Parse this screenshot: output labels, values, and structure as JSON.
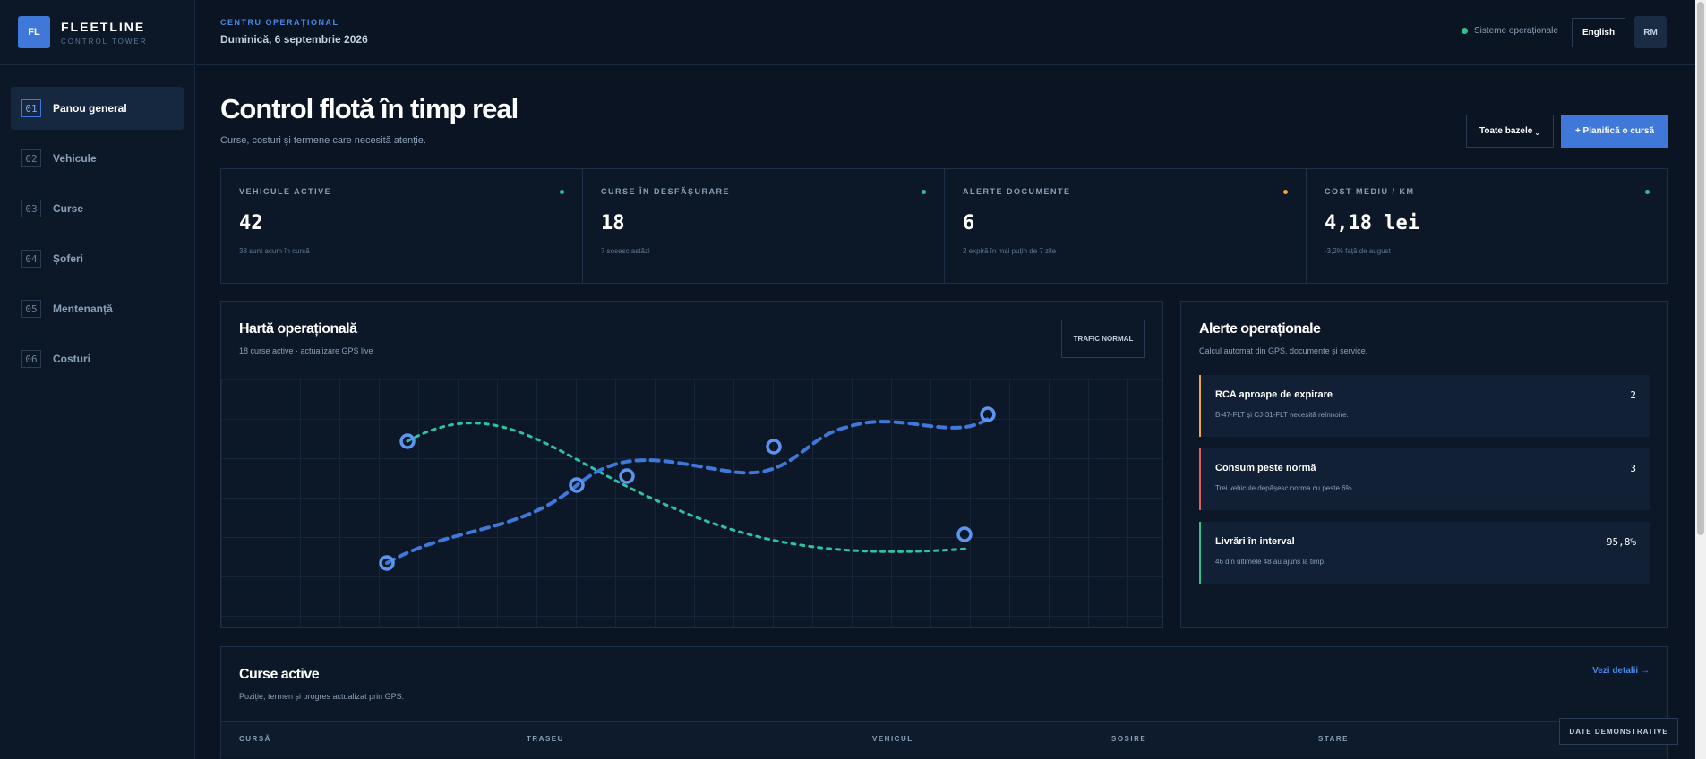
{
  "brand": {
    "logo": "FL",
    "name": "FLEETLINE",
    "subtitle": "CONTROL TOWER"
  },
  "sidebar": {
    "items": [
      {
        "num": "01",
        "label": "Panou general",
        "active": true
      },
      {
        "num": "02",
        "label": "Vehicule"
      },
      {
        "num": "03",
        "label": "Curse"
      },
      {
        "num": "04",
        "label": "Șoferi"
      },
      {
        "num": "05",
        "label": "Mentenanță"
      },
      {
        "num": "06",
        "label": "Costuri"
      }
    ]
  },
  "topbar": {
    "eyebrow": "CENTRU OPERAȚIONAL",
    "date": "Duminică, 6 septembrie 2026",
    "status": "Sisteme operaționale",
    "language": "English",
    "avatar": "RM"
  },
  "page": {
    "title": "Control flotă în timp real",
    "subtitle": "Curse, costuri și termene care necesită atenție.",
    "bases_button": "Toate bazele",
    "bases_icon": "chevron-down-icon",
    "plan_button": "+ Planifică o cursă"
  },
  "kpis": [
    {
      "label": "VEHICULE ACTIVE",
      "value": "42",
      "note": "38 sunt acum în cursă",
      "color": "#2cc38f"
    },
    {
      "label": "CURSE ÎN DESFĂȘURARE",
      "value": "18",
      "note": "7 sosesc astăzi",
      "color": "#2cc38f"
    },
    {
      "label": "ALERTE DOCUMENTE",
      "value": "6",
      "note": "2 expiră în mai puțin de 7 zile",
      "color": "#f0a640"
    },
    {
      "label": "COST MEDIU / KM",
      "value": "4,18 lei",
      "note": "-3,2% față de august",
      "color": "#2cc38f"
    }
  ],
  "map": {
    "title": "Hartă operațională",
    "subtitle": "18 curse active · actualizare GPS live",
    "badge": "TRAFIC NORMAL",
    "route_colors": [
      "#3f78d8",
      "#2cc3a5"
    ]
  },
  "alerts": {
    "title": "Alerte operaționale",
    "subtitle": "Calcul automat din GPS, documente și service.",
    "items": [
      {
        "title": "RCA aproape de expirare",
        "desc": "B-47-FLT și CJ-31-FLT necesită reînnoire.",
        "count": "2",
        "color": "#f0a640"
      },
      {
        "title": "Consum peste normă",
        "desc": "Trei vehicule depășesc norma cu peste 6%.",
        "count": "3",
        "color": "#e35d5d"
      },
      {
        "title": "Livrări în interval",
        "desc": "46 din ultimele 48 au ajuns la timp.",
        "count": "95,8%",
        "color": "#2cc38f"
      }
    ]
  },
  "trips": {
    "title": "Curse active",
    "subtitle": "Poziție, termen și progres actualizat prin GPS.",
    "link": "Vezi detalii →",
    "columns": [
      "CURSĂ",
      "TRASEU",
      "VEHICUL",
      "SOSIRE",
      "STARE"
    ]
  },
  "demo_badge": "DATE DEMONSTRATIVE"
}
